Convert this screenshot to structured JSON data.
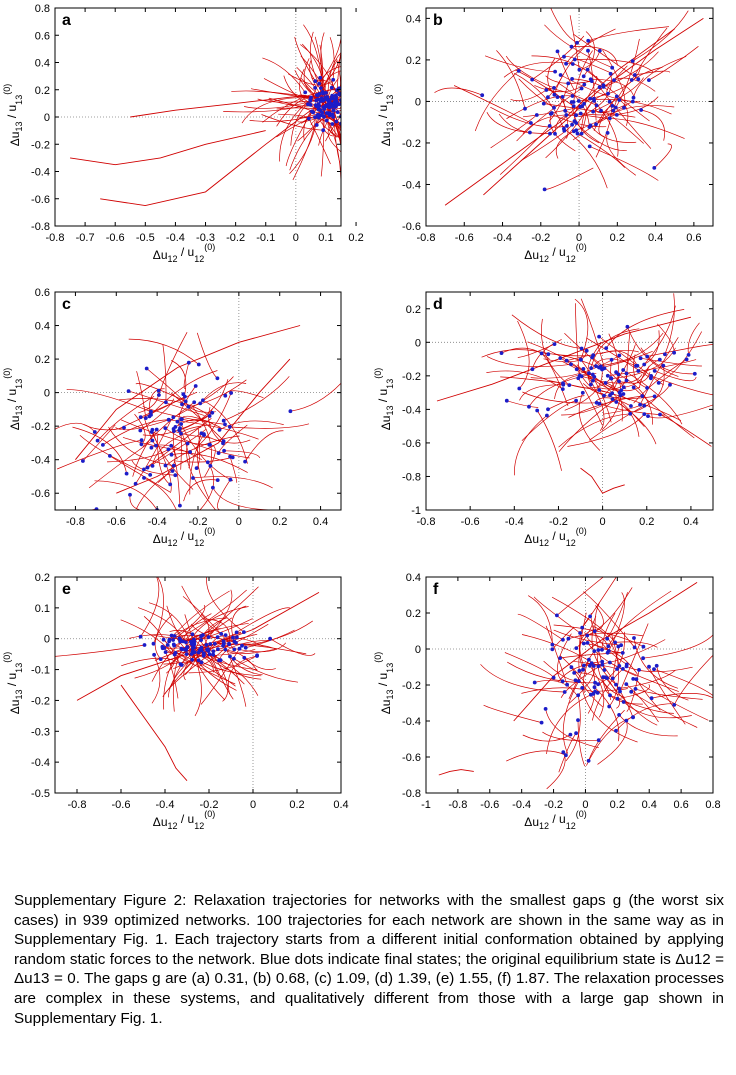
{
  "caption": "Supplementary Figure 2: Relaxation trajectories for networks with the smallest gaps g (the worst six cases) in 939 optimized networks. 100 trajectories for each network are shown in the same way as in Supplementary Fig. 1. Each trajectory starts from a different initial conformation obtained by applying random static forces to the network. Blue dots indicate final states; the original equilibrium state is Δu12 = Δu13 = 0. The gaps g are (a) 0.31, (b) 0.68, (c) 1.09, (d) 1.39, (e) 1.55, (f) 1.87. The relaxation processes are complex in these systems, and qualitatively different from those with a large gap shown in Supplementary Fig. 1.",
  "colors": {
    "trajectory": "#d00000",
    "final_state": "#1c1cc8",
    "axis": "#000000",
    "zero_line": "#808080"
  },
  "chart_data": [
    {
      "type": "line",
      "panel": "a",
      "xlabel": "Δu12 / u12(0)",
      "ylabel": "Δu13 / u13(0)",
      "xlim": [
        -0.8,
        0.15
      ],
      "ylim": [
        -0.8,
        0.8
      ],
      "xticks": [
        "-0.8",
        "-0.7",
        "-0.6",
        "-0.5",
        "-0.4",
        "-0.3",
        "-0.2",
        "-0.1",
        "0",
        "0.1",
        "0.2"
      ],
      "yticks": [
        "-0.8",
        "-0.6",
        "-0.4",
        "-0.2",
        "0",
        "0.2",
        "0.4",
        "0.6",
        "0.8"
      ],
      "final_state_center": [
        0.1,
        0.1
      ],
      "final_state_spread": [
        0.06,
        0.15
      ],
      "trajectory_count": 100,
      "sample_trajectories": [
        {
          "x": [
            -0.55,
            -0.4,
            -0.2,
            0.0,
            0.1
          ],
          "y": [
            0.0,
            0.05,
            0.1,
            0.15,
            0.15
          ]
        },
        {
          "x": [
            -0.65,
            -0.5,
            -0.3,
            -0.1,
            0.05
          ],
          "y": [
            -0.6,
            -0.65,
            -0.55,
            -0.2,
            0.05
          ]
        },
        {
          "x": [
            -0.75,
            -0.6,
            -0.45,
            -0.3,
            -0.1
          ],
          "y": [
            -0.3,
            -0.35,
            -0.3,
            -0.2,
            -0.1
          ]
        }
      ]
    },
    {
      "type": "line",
      "panel": "b",
      "xlabel": "Δu12 / u12(0)",
      "ylabel": "Δu13 / u13(0)",
      "xlim": [
        -0.8,
        0.7
      ],
      "ylim": [
        -0.6,
        0.45
      ],
      "xticks": [
        "-0.8",
        "-0.6",
        "-0.4",
        "-0.2",
        "0",
        "0.2",
        "0.4",
        "0.6"
      ],
      "yticks": [
        "-0.6",
        "-0.4",
        "-0.2",
        "0",
        "0.2",
        "0.4"
      ],
      "final_state_center": [
        0.0,
        0.0
      ],
      "final_state_spread": [
        0.35,
        0.25
      ],
      "trajectory_count": 100,
      "sample_trajectories": [
        {
          "x": [
            -0.7,
            -0.4,
            -0.1,
            0.2,
            0.5
          ],
          "y": [
            -0.5,
            -0.3,
            -0.1,
            0.15,
            0.35
          ]
        },
        {
          "x": [
            -0.5,
            -0.2,
            0.1,
            0.4,
            0.65
          ],
          "y": [
            -0.45,
            -0.2,
            0.05,
            0.25,
            0.4
          ]
        }
      ]
    },
    {
      "type": "line",
      "panel": "c",
      "xlabel": "Δu12 / u12(0)",
      "ylabel": "Δu13 / u13(0)",
      "xlim": [
        -0.9,
        0.5
      ],
      "ylim": [
        -0.7,
        0.6
      ],
      "xticks": [
        "-0.8",
        "-0.6",
        "-0.4",
        "-0.2",
        "0",
        "0.2",
        "0.4"
      ],
      "yticks": [
        "-0.6",
        "-0.4",
        "-0.2",
        "0",
        "0.2",
        "0.4",
        "0.6"
      ],
      "final_state_center": [
        -0.3,
        -0.25
      ],
      "final_state_spread": [
        0.35,
        0.35
      ],
      "trajectory_count": 100,
      "sample_trajectories": [
        {
          "x": [
            -0.8,
            -0.6,
            -0.3,
            0.0,
            0.3
          ],
          "y": [
            -0.4,
            -0.1,
            0.15,
            0.3,
            0.4
          ]
        },
        {
          "x": [
            -0.6,
            -0.4,
            -0.1,
            0.1,
            0.25
          ],
          "y": [
            -0.6,
            -0.5,
            -0.3,
            0.0,
            0.2
          ]
        }
      ]
    },
    {
      "type": "line",
      "panel": "d",
      "xlabel": "Δu12 / u12(0)",
      "ylabel": "Δu13 / u13(0)",
      "xlim": [
        -0.8,
        0.5
      ],
      "ylim": [
        -1.0,
        0.3
      ],
      "xticks": [
        "-0.8",
        "-0.6",
        "-0.4",
        "-0.2",
        "0",
        "0.2",
        "0.4"
      ],
      "yticks": [
        "-1",
        "-0.8",
        "-0.6",
        "-0.4",
        "-0.2",
        "0",
        "0.2"
      ],
      "final_state_center": [
        0.0,
        -0.2
      ],
      "final_state_spread": [
        0.35,
        0.25
      ],
      "trajectory_count": 100,
      "sample_trajectories": [
        {
          "x": [
            -0.1,
            -0.05,
            0.0,
            0.05,
            0.1
          ],
          "y": [
            -0.75,
            -0.8,
            -0.9,
            -0.87,
            -0.85
          ]
        },
        {
          "x": [
            -0.75,
            -0.5,
            -0.2,
            0.1,
            0.4
          ],
          "y": [
            -0.35,
            -0.25,
            -0.1,
            0.05,
            0.15
          ]
        }
      ]
    },
    {
      "type": "line",
      "panel": "e",
      "xlabel": "Δu12 / u12(0)",
      "ylabel": "Δu13 / u13(0)",
      "xlim": [
        -0.9,
        0.4
      ],
      "ylim": [
        -0.5,
        0.2
      ],
      "xticks": [
        "-0.8",
        "-0.6",
        "-0.4",
        "-0.2",
        "0",
        "0.2",
        "0.4"
      ],
      "yticks": [
        "-0.5",
        "-0.4",
        "-0.3",
        "-0.2",
        "-0.1",
        "0",
        "0.1",
        "0.2"
      ],
      "final_state_center": [
        -0.25,
        -0.03
      ],
      "final_state_spread": [
        0.25,
        0.05
      ],
      "trajectory_count": 100,
      "sample_trajectories": [
        {
          "x": [
            -0.8,
            -0.6,
            -0.3,
            0.0,
            0.3
          ],
          "y": [
            -0.2,
            -0.12,
            -0.05,
            0.03,
            0.15
          ]
        },
        {
          "x": [
            -0.6,
            -0.5,
            -0.4,
            -0.35,
            -0.3
          ],
          "y": [
            -0.15,
            -0.25,
            -0.35,
            -0.42,
            -0.46
          ]
        }
      ]
    },
    {
      "type": "line",
      "panel": "f",
      "xlabel": "Δu12 / u12(0)",
      "ylabel": "Δu13 / u13(0)",
      "xlim": [
        -1.0,
        0.8
      ],
      "ylim": [
        -0.8,
        0.4
      ],
      "xticks": [
        "-1",
        "-0.8",
        "-0.6",
        "-0.4",
        "-0.2",
        "0",
        "0.2",
        "0.4",
        "0.6",
        "0.8"
      ],
      "yticks": [
        "-0.8",
        "-0.6",
        "-0.4",
        "-0.2",
        "0",
        "0.2",
        "0.4"
      ],
      "final_state_center": [
        0.1,
        -0.15
      ],
      "final_state_spread": [
        0.35,
        0.3
      ],
      "trajectory_count": 100,
      "sample_trajectories": [
        {
          "x": [
            -0.92,
            -0.85,
            -0.78,
            -0.7
          ],
          "y": [
            -0.7,
            -0.68,
            -0.67,
            -0.68
          ]
        },
        {
          "x": [
            -0.45,
            -0.2,
            0.1,
            0.4,
            0.7
          ],
          "y": [
            -0.4,
            -0.15,
            0.05,
            0.2,
            0.37
          ]
        }
      ]
    }
  ]
}
